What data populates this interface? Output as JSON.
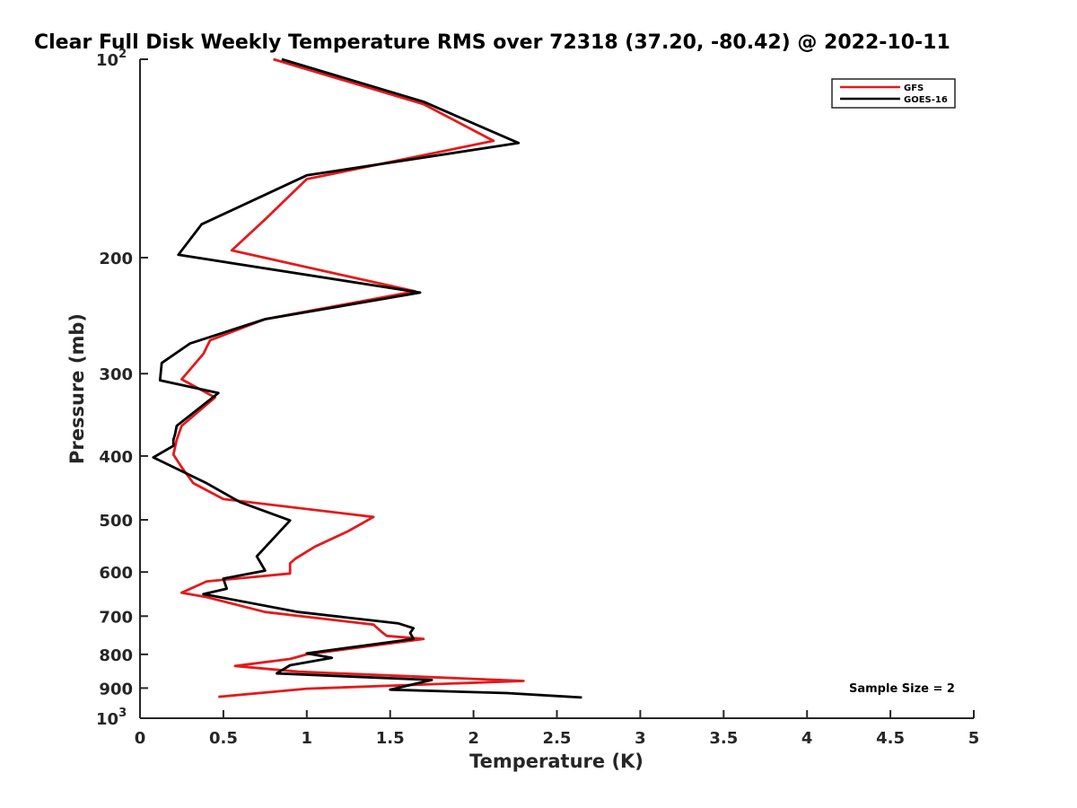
{
  "chart_data": {
    "type": "line",
    "title": "Clear Full Disk Weekly Temperature RMS over 72318 (37.20, -80.42) @ 2022-10-11",
    "xlabel": "Temperature (K)",
    "ylabel": "Pressure (mb)",
    "xlim": [
      0,
      5
    ],
    "ylim": [
      100,
      1000
    ],
    "y_scale": "log",
    "y_reversed": true,
    "x_ticks": [
      "0",
      "0.5",
      "1",
      "1.5",
      "2",
      "2.5",
      "3",
      "3.5",
      "4",
      "4.5",
      "5"
    ],
    "y_ticks": [
      {
        "value": 100,
        "base": "10",
        "exp": "2"
      },
      {
        "value": 200,
        "base": "200",
        "exp": ""
      },
      {
        "value": 300,
        "base": "300",
        "exp": ""
      },
      {
        "value": 400,
        "base": "400",
        "exp": ""
      },
      {
        "value": 500,
        "base": "500",
        "exp": ""
      },
      {
        "value": 600,
        "base": "600",
        "exp": ""
      },
      {
        "value": 700,
        "base": "700",
        "exp": ""
      },
      {
        "value": 800,
        "base": "800",
        "exp": ""
      },
      {
        "value": 900,
        "base": "900",
        "exp": ""
      },
      {
        "value": 1000,
        "base": "10",
        "exp": "3"
      }
    ],
    "legend_position": "top-right",
    "annotation": "Sample Size = 2",
    "series": [
      {
        "name": "GFS",
        "color": "#e41a1c",
        "points": [
          [
            0.8,
            100
          ],
          [
            1.7,
            117
          ],
          [
            2.12,
            133
          ],
          [
            1.0,
            152
          ],
          [
            0.75,
            175
          ],
          [
            0.55,
            195
          ],
          [
            1.65,
            225
          ],
          [
            0.75,
            248
          ],
          [
            0.42,
            267
          ],
          [
            0.38,
            280
          ],
          [
            0.25,
            306
          ],
          [
            0.45,
            326
          ],
          [
            0.25,
            360
          ],
          [
            0.22,
            378
          ],
          [
            0.2,
            398
          ],
          [
            0.25,
            416
          ],
          [
            0.32,
            440
          ],
          [
            0.5,
            465
          ],
          [
            1.4,
            495
          ],
          [
            1.25,
            520
          ],
          [
            1.05,
            549
          ],
          [
            0.93,
            573
          ],
          [
            0.9,
            582
          ],
          [
            0.9,
            603
          ],
          [
            0.4,
            620
          ],
          [
            0.25,
            645
          ],
          [
            0.4,
            655
          ],
          [
            0.75,
            690
          ],
          [
            1.4,
            721
          ],
          [
            1.45,
            740
          ],
          [
            1.48,
            750
          ],
          [
            1.7,
            758
          ],
          [
            1.0,
            800
          ],
          [
            0.9,
            813
          ],
          [
            0.57,
            833
          ],
          [
            0.95,
            850
          ],
          [
            2.3,
            878
          ],
          [
            1.0,
            902
          ],
          [
            0.47,
            928
          ]
        ]
      },
      {
        "name": "GOES-16",
        "color": "#000000",
        "points": [
          [
            0.85,
            100
          ],
          [
            1.7,
            116
          ],
          [
            2.27,
            134
          ],
          [
            1.0,
            150
          ],
          [
            0.37,
            178
          ],
          [
            0.23,
            198
          ],
          [
            1.68,
            226
          ],
          [
            0.75,
            248
          ],
          [
            0.3,
            270
          ],
          [
            0.13,
            289
          ],
          [
            0.12,
            307
          ],
          [
            0.47,
            321
          ],
          [
            0.22,
            360
          ],
          [
            0.21,
            371
          ],
          [
            0.2,
            378
          ],
          [
            0.2,
            386
          ],
          [
            0.08,
            402
          ],
          [
            0.4,
            440
          ],
          [
            0.6,
            470
          ],
          [
            0.9,
            501
          ],
          [
            0.7,
            568
          ],
          [
            0.73,
            585
          ],
          [
            0.75,
            597
          ],
          [
            0.5,
            614
          ],
          [
            0.52,
            636
          ],
          [
            0.38,
            648
          ],
          [
            0.95,
            690
          ],
          [
            1.55,
            718
          ],
          [
            1.64,
            730
          ],
          [
            1.62,
            742
          ],
          [
            1.64,
            758
          ],
          [
            1.0,
            797
          ],
          [
            1.15,
            810
          ],
          [
            0.9,
            831
          ],
          [
            0.82,
            855
          ],
          [
            1.75,
            875
          ],
          [
            1.5,
            905
          ],
          [
            2.2,
            916
          ],
          [
            2.65,
            930
          ]
        ]
      }
    ]
  }
}
